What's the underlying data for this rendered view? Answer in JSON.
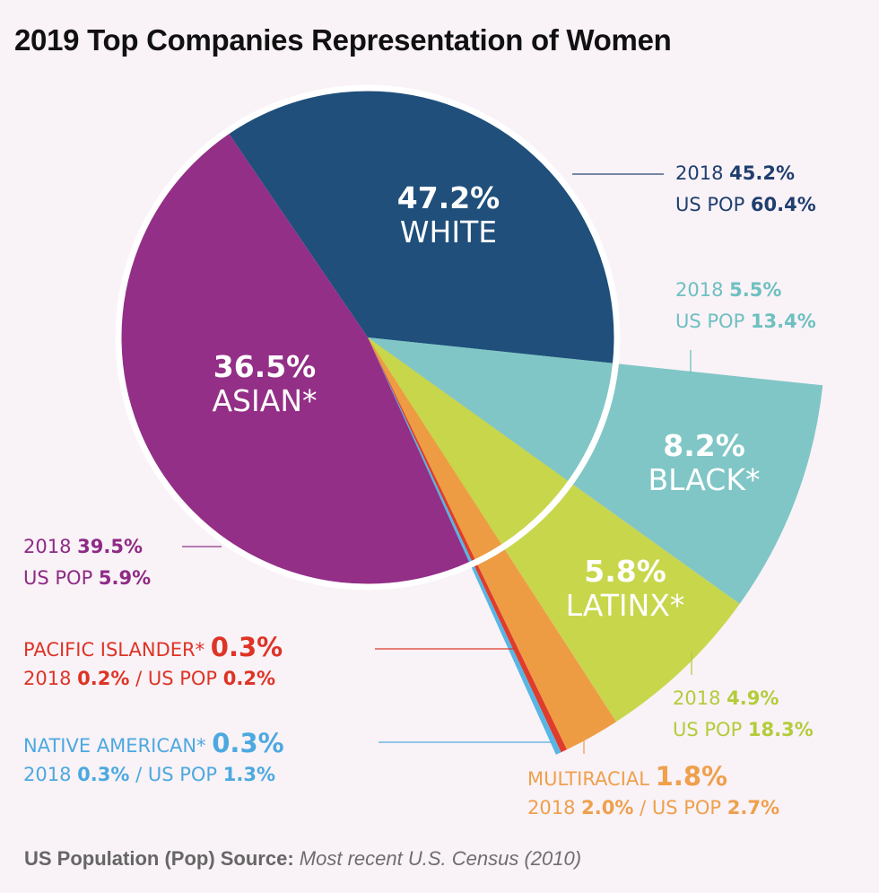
{
  "title": "2019 Top Companies Representation of Women",
  "chart_data": {
    "type": "pie",
    "title": "2019 Top Companies Representation of Women",
    "unit": "%",
    "series": [
      {
        "key": "white",
        "name": "WHITE",
        "value": 47.2,
        "value_label": "47.2%",
        "prev_label": "2018",
        "prev_value": "45.2%",
        "pop_label": "US POP",
        "pop_value": "60.4%",
        "color": "#1f4f7a",
        "text_color": "#1f3f6e"
      },
      {
        "key": "black",
        "name": "BLACK*",
        "value": 8.2,
        "value_label": "8.2%",
        "prev_label": "2018",
        "prev_value": "5.5%",
        "pop_label": "US POP",
        "pop_value": "13.4%",
        "color": "#80c6c6",
        "text_color": "#6ec0c0"
      },
      {
        "key": "latinx",
        "name": "LATINX*",
        "value": 5.8,
        "value_label": "5.8%",
        "prev_label": "2018",
        "prev_value": "4.9%",
        "pop_label": "US POP",
        "pop_value": "18.3%",
        "color": "#c8d64c",
        "text_color": "#b3cc3a"
      },
      {
        "key": "multiracial",
        "name": "MULTIRACIAL",
        "value": 1.8,
        "value_label": "1.8%",
        "prev_label": "2018",
        "prev_value": "2.0%",
        "pop_label": "US POP",
        "pop_value": "2.7%",
        "color": "#ee9c44",
        "text_color": "#eea04c"
      },
      {
        "key": "pacific",
        "name": "PACIFIC ISLANDER*",
        "value": 0.3,
        "value_label": "0.3%",
        "prev_label": "2018",
        "prev_value": "0.2%",
        "pop_label": "US POP",
        "pop_value": "0.2%",
        "color": "#e03c2c",
        "text_color": "#dd3426"
      },
      {
        "key": "native",
        "name": "NATIVE AMERICAN*",
        "value": 0.3,
        "value_label": "0.3%",
        "prev_label": "2018",
        "prev_value": "0.3%",
        "pop_label": "US POP",
        "pop_value": "1.3%",
        "color": "#58b6e4",
        "text_color": "#4ca9df"
      },
      {
        "key": "asian",
        "name": "ASIAN*",
        "value": 36.5,
        "value_label": "36.5%",
        "prev_label": "2018",
        "prev_value": "39.5%",
        "pop_label": "US POP",
        "pop_value": "5.9%",
        "color": "#932f87",
        "text_color": "#8e2a85"
      }
    ],
    "legend": "none",
    "separator": "/"
  },
  "footer": {
    "label": "US Population (Pop) Source:",
    "source": "Most recent U.S. Census (2010)"
  }
}
